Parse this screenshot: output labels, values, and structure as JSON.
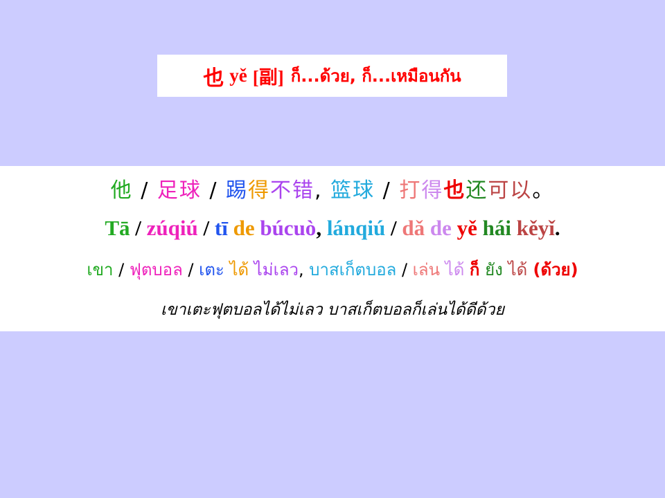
{
  "title": {
    "chinese": "也",
    "pinyin": "yě",
    "pos": "[副]",
    "thai": "ก็...ด้วย, ก็...เหมือนกัน"
  },
  "sentence": {
    "chinese": [
      {
        "text": "他",
        "color": "#22aa22"
      },
      {
        "text": " / ",
        "color": "#000000"
      },
      {
        "text": "足球",
        "color": "#ee22bb"
      },
      {
        "text": " / ",
        "color": "#000000"
      },
      {
        "text": "踢",
        "color": "#2255ee"
      },
      {
        "text": "得",
        "color": "#ee9900"
      },
      {
        "text": "不错",
        "color": "#aa44ee"
      },
      {
        "text": ", ",
        "color": "#000000"
      },
      {
        "text": "篮球",
        "color": "#22aadd"
      },
      {
        "text": " / ",
        "color": "#000000"
      },
      {
        "text": "打",
        "color": "#ee7777"
      },
      {
        "text": "得",
        "color": "#cc88ee"
      },
      {
        "text": "也",
        "color": "#ee0000"
      },
      {
        "text": "还",
        "color": "#228822"
      },
      {
        "text": "可以",
        "color": "#bb4444"
      },
      {
        "text": "。",
        "color": "#000000"
      }
    ],
    "pinyin": [
      {
        "text": "Tā",
        "color": "#22aa22"
      },
      {
        "text": " / ",
        "color": "#000000"
      },
      {
        "text": "zúqiú",
        "color": "#ee22bb"
      },
      {
        "text": " / ",
        "color": "#000000"
      },
      {
        "text": "tī",
        "color": "#2255ee"
      },
      {
        "text": " de ",
        "color": "#ee9900"
      },
      {
        "text": "búcuò",
        "color": "#aa44ee"
      },
      {
        "text": ", ",
        "color": "#000000"
      },
      {
        "text": "lánqiú",
        "color": "#22aadd"
      },
      {
        "text": " / ",
        "color": "#000000"
      },
      {
        "text": "dǎ",
        "color": "#ee7777"
      },
      {
        "text": " de ",
        "color": "#cc88ee"
      },
      {
        "text": "yě",
        "color": "#ee0000"
      },
      {
        "text": " hái ",
        "color": "#228822"
      },
      {
        "text": "kěyǐ",
        "color": "#bb4444"
      },
      {
        "text": ".",
        "color": "#000000"
      }
    ],
    "thai_gloss": [
      {
        "text": "เขา",
        "color": "#22aa22"
      },
      {
        "text": " / ",
        "color": "#000000"
      },
      {
        "text": "ฟุตบอล",
        "color": "#ee22bb"
      },
      {
        "text": " / ",
        "color": "#000000"
      },
      {
        "text": "เตะ",
        "color": "#2255ee"
      },
      {
        "text": " ได้ ",
        "color": "#ee9900"
      },
      {
        "text": "ไม่เลว",
        "color": "#aa44ee"
      },
      {
        "text": ", ",
        "color": "#000000"
      },
      {
        "text": "บาสเก็ตบอล",
        "color": "#22aadd"
      },
      {
        "text": " / ",
        "color": "#000000"
      },
      {
        "text": "เล่น",
        "color": "#ee7777"
      },
      {
        "text": " ได้ ",
        "color": "#cc88ee"
      },
      {
        "text": "ก็",
        "color": "#ee0000"
      },
      {
        "text": " ยัง ",
        "color": "#228822"
      },
      {
        "text": "ได้",
        "color": "#bb4444"
      },
      {
        "text": " (ด้วย)",
        "color": "#ee0000"
      }
    ],
    "thai_translation": "เขาเตะฟุตบอลได้ไม่เลว บาสเก็ตบอลก็เล่นได้ดีด้วย"
  }
}
